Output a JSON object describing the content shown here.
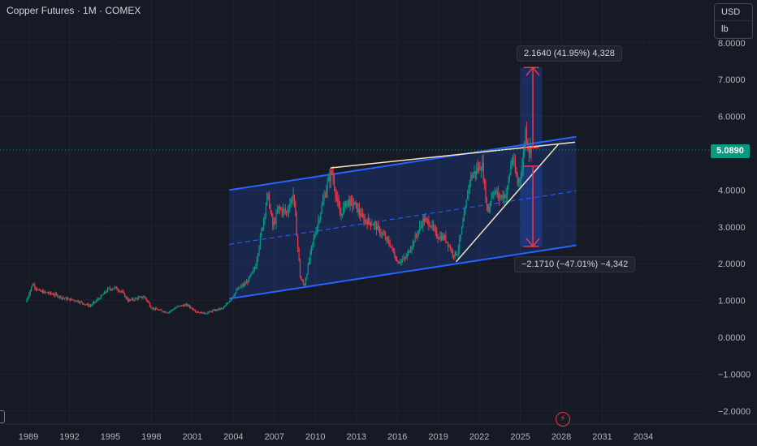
{
  "header": {
    "title": "Copper Futures · 1M · COMEX"
  },
  "units": {
    "currency": "USD",
    "unit": "lb"
  },
  "current_price": {
    "label": "5.0890",
    "color": "#089981"
  },
  "measure_up": {
    "label": "2.1640 (41.95%) 4,328"
  },
  "measure_down": {
    "label": "−2.1710 (−47.01%) −4,342"
  },
  "colors": {
    "up": "#089981",
    "down": "#f23645",
    "channel": "#2962ff",
    "trendline": "#f5e6c4",
    "measure": "#f23645"
  },
  "icons": {
    "logo": "tradingview-logo-icon",
    "edge": "scale-handle-icon"
  },
  "chart_data": {
    "type": "candlestick",
    "title": "Copper Futures · 1M · COMEX",
    "y_axis_side": "right",
    "ylim": [
      -2.2,
      8.3
    ],
    "xlim": [
      1988.5,
      2035.5
    ],
    "y_ticks": [
      "8.0000",
      "7.0000",
      "6.0000",
      "5.0000",
      "4.0000",
      "3.0000",
      "2.0000",
      "1.0000",
      "0.0000",
      "−1.0000",
      "−2.0000"
    ],
    "y_tick_values": [
      8,
      7,
      6,
      5,
      4,
      3,
      2,
      1,
      0,
      -1,
      -2
    ],
    "x_ticks": [
      "1989",
      "1992",
      "1995",
      "1998",
      "2001",
      "2004",
      "2007",
      "2010",
      "2013",
      "2016",
      "2019",
      "2022",
      "2025",
      "2028",
      "2031",
      "2034"
    ],
    "x_tick_values": [
      1989,
      1992,
      1995,
      1998,
      2001,
      2004,
      2007,
      2010,
      2013,
      2016,
      2019,
      2022,
      2025,
      2028,
      2031,
      2034
    ],
    "last_price": 5.089,
    "price_path": [
      [
        1988.8,
        0.95
      ],
      [
        1989.3,
        1.45
      ],
      [
        1989.8,
        1.25
      ],
      [
        1990.5,
        1.2
      ],
      [
        1991,
        1.15
      ],
      [
        1991.7,
        1.05
      ],
      [
        1992.5,
        1.0
      ],
      [
        1993.5,
        0.85
      ],
      [
        1994.3,
        1.1
      ],
      [
        1994.8,
        1.3
      ],
      [
        1995.3,
        1.35
      ],
      [
        1995.8,
        1.25
      ],
      [
        1996.3,
        1.0
      ],
      [
        1996.8,
        1.05
      ],
      [
        1997.5,
        1.1
      ],
      [
        1998,
        0.8
      ],
      [
        1998.7,
        0.72
      ],
      [
        1999.2,
        0.68
      ],
      [
        2000,
        0.85
      ],
      [
        2000.6,
        0.88
      ],
      [
        2001.3,
        0.7
      ],
      [
        2001.9,
        0.65
      ],
      [
        2002.5,
        0.72
      ],
      [
        2003.3,
        0.8
      ],
      [
        2003.8,
        1.05
      ],
      [
        2004.3,
        1.3
      ],
      [
        2005,
        1.5
      ],
      [
        2005.6,
        1.9
      ],
      [
        2006.2,
        3.2
      ],
      [
        2006.5,
        3.9
      ],
      [
        2006.9,
        3.0
      ],
      [
        2007.3,
        3.5
      ],
      [
        2007.9,
        3.4
      ],
      [
        2008.4,
        3.9
      ],
      [
        2008.9,
        1.6
      ],
      [
        2009.2,
        1.4
      ],
      [
        2009.7,
        2.4
      ],
      [
        2010.3,
        3.3
      ],
      [
        2010.9,
        4.2
      ],
      [
        2011.2,
        4.5
      ],
      [
        2011.8,
        3.3
      ],
      [
        2012.3,
        3.7
      ],
      [
        2012.9,
        3.6
      ],
      [
        2013.5,
        3.2
      ],
      [
        2014.2,
        3.1
      ],
      [
        2014.9,
        2.8
      ],
      [
        2015.5,
        2.5
      ],
      [
        2016.0,
        2.05
      ],
      [
        2016.6,
        2.15
      ],
      [
        2017.3,
        2.7
      ],
      [
        2017.9,
        3.2
      ],
      [
        2018.4,
        3.1
      ],
      [
        2018.9,
        2.75
      ],
      [
        2019.5,
        2.7
      ],
      [
        2020.1,
        2.25
      ],
      [
        2020.4,
        2.3
      ],
      [
        2020.9,
        3.3
      ],
      [
        2021.3,
        4.3
      ],
      [
        2021.7,
        4.5
      ],
      [
        2022.2,
        4.7
      ],
      [
        2022.6,
        3.4
      ],
      [
        2023.0,
        4.0
      ],
      [
        2023.5,
        3.8
      ],
      [
        2024.0,
        3.9
      ],
      [
        2024.4,
        4.9
      ],
      [
        2024.8,
        4.2
      ],
      [
        2025.1,
        4.5
      ],
      [
        2025.4,
        5.7
      ],
      [
        2025.6,
        5.1
      ],
      [
        2025.8,
        5.089
      ]
    ],
    "channel": {
      "lower": [
        [
          2003.7,
          1.05
        ],
        [
          2029.1,
          2.5
        ]
      ],
      "upper": [
        [
          2003.7,
          4.0
        ],
        [
          2029.1,
          5.45
        ]
      ],
      "mid": [
        [
          2003.7,
          2.525
        ],
        [
          2029.1,
          3.975
        ]
      ]
    },
    "resistance_line": [
      [
        2011.1,
        4.6
      ],
      [
        2029.0,
        5.3
      ]
    ],
    "support_line": [
      [
        2020.3,
        2.05
      ],
      [
        2027.8,
        5.25
      ]
    ],
    "measure_up_range": [
      5.15,
      7.33
    ],
    "measure_down_range": [
      4.65,
      2.47
    ],
    "measure_x": [
      2025.0,
      2026.6
    ]
  }
}
